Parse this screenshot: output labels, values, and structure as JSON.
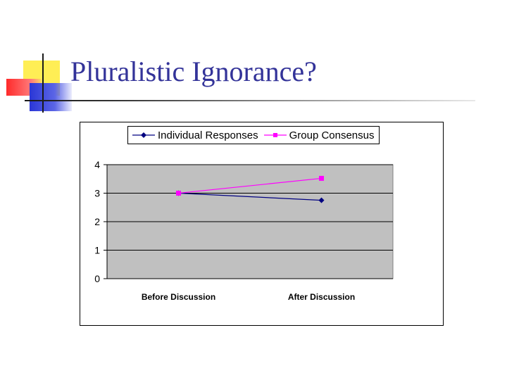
{
  "slide": {
    "title": "Pluralistic Ignorance?"
  },
  "chart_data": {
    "type": "line",
    "categories": [
      "Before Discussion",
      "After Discussion"
    ],
    "series": [
      {
        "name": "Individual Responses",
        "values": [
          3.0,
          2.75
        ],
        "color": "#000080",
        "marker": "diamond"
      },
      {
        "name": "Group Consensus",
        "values": [
          3.0,
          3.52
        ],
        "color": "#ff00ff",
        "marker": "square"
      }
    ],
    "yticks": [
      "0",
      "1",
      "2",
      "3",
      "4"
    ],
    "ylim": [
      0,
      4
    ],
    "grid": true,
    "plot_background": "#c0c0c0",
    "legend_position": "top"
  }
}
